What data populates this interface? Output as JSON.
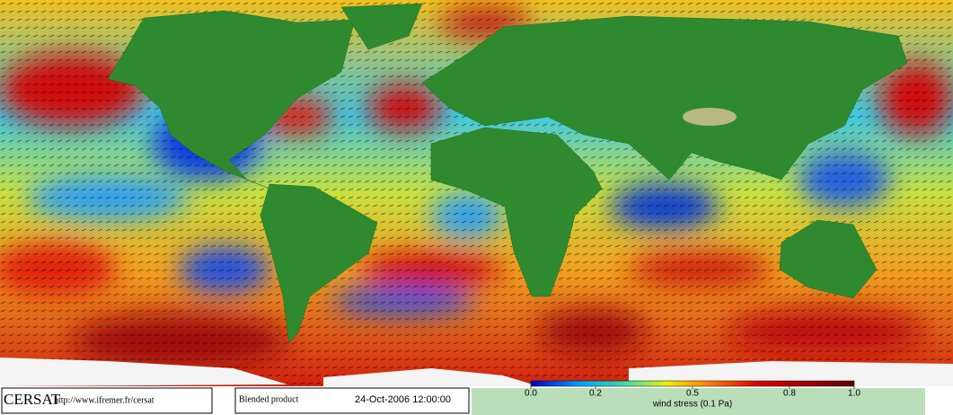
{
  "footer": {
    "logo": "CERSAT",
    "url": "http://www.ifremer.fr/cersat",
    "product": "Blended product",
    "date": "24-Oct-2006 12:00:00"
  },
  "colorbar": {
    "lim": [
      0,
      1
    ],
    "ticks": [
      {
        "value": 0,
        "label": "0.0"
      },
      0.2,
      0.5,
      0.8,
      {
        "value": 1,
        "label": "1.0"
      }
    ],
    "label": "wind stress (0.1 Pa)"
  }
}
